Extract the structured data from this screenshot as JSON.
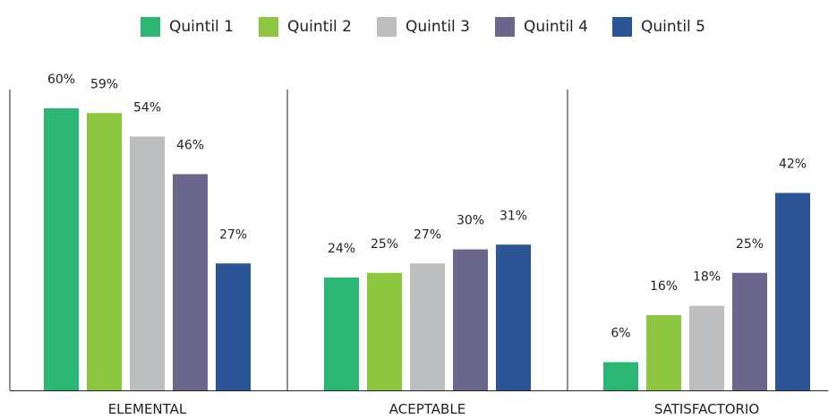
{
  "chart_data": {
    "type": "bar",
    "categories": [
      "ELEMENTAL",
      "ACEPTABLE",
      "SATISFACTORIO"
    ],
    "series": [
      {
        "name": "Quintil 1",
        "color": "#2bb673",
        "values": [
          60,
          24,
          6
        ],
        "labels": [
          "60%",
          "24%",
          "6%"
        ]
      },
      {
        "name": "Quintil 2",
        "color": "#8dc63f",
        "values": [
          59,
          25,
          16
        ],
        "labels": [
          "59%",
          "25%",
          "16%"
        ]
      },
      {
        "name": "Quintil 3",
        "color": "#bcbec0",
        "values": [
          54,
          27,
          18
        ],
        "labels": [
          "54%",
          "27%",
          "18%"
        ]
      },
      {
        "name": "Quintil 4",
        "color": "#6b668c",
        "values": [
          46,
          30,
          25
        ],
        "labels": [
          "46%",
          "30%",
          "25%"
        ]
      },
      {
        "name": "Quintil 5",
        "color": "#2b5597",
        "values": [
          27,
          31,
          42
        ],
        "labels": [
          "27%",
          "31%",
          "42%"
        ]
      }
    ],
    "ylim": [
      0,
      64
    ],
    "legend_position": "top-center",
    "grid": false
  }
}
